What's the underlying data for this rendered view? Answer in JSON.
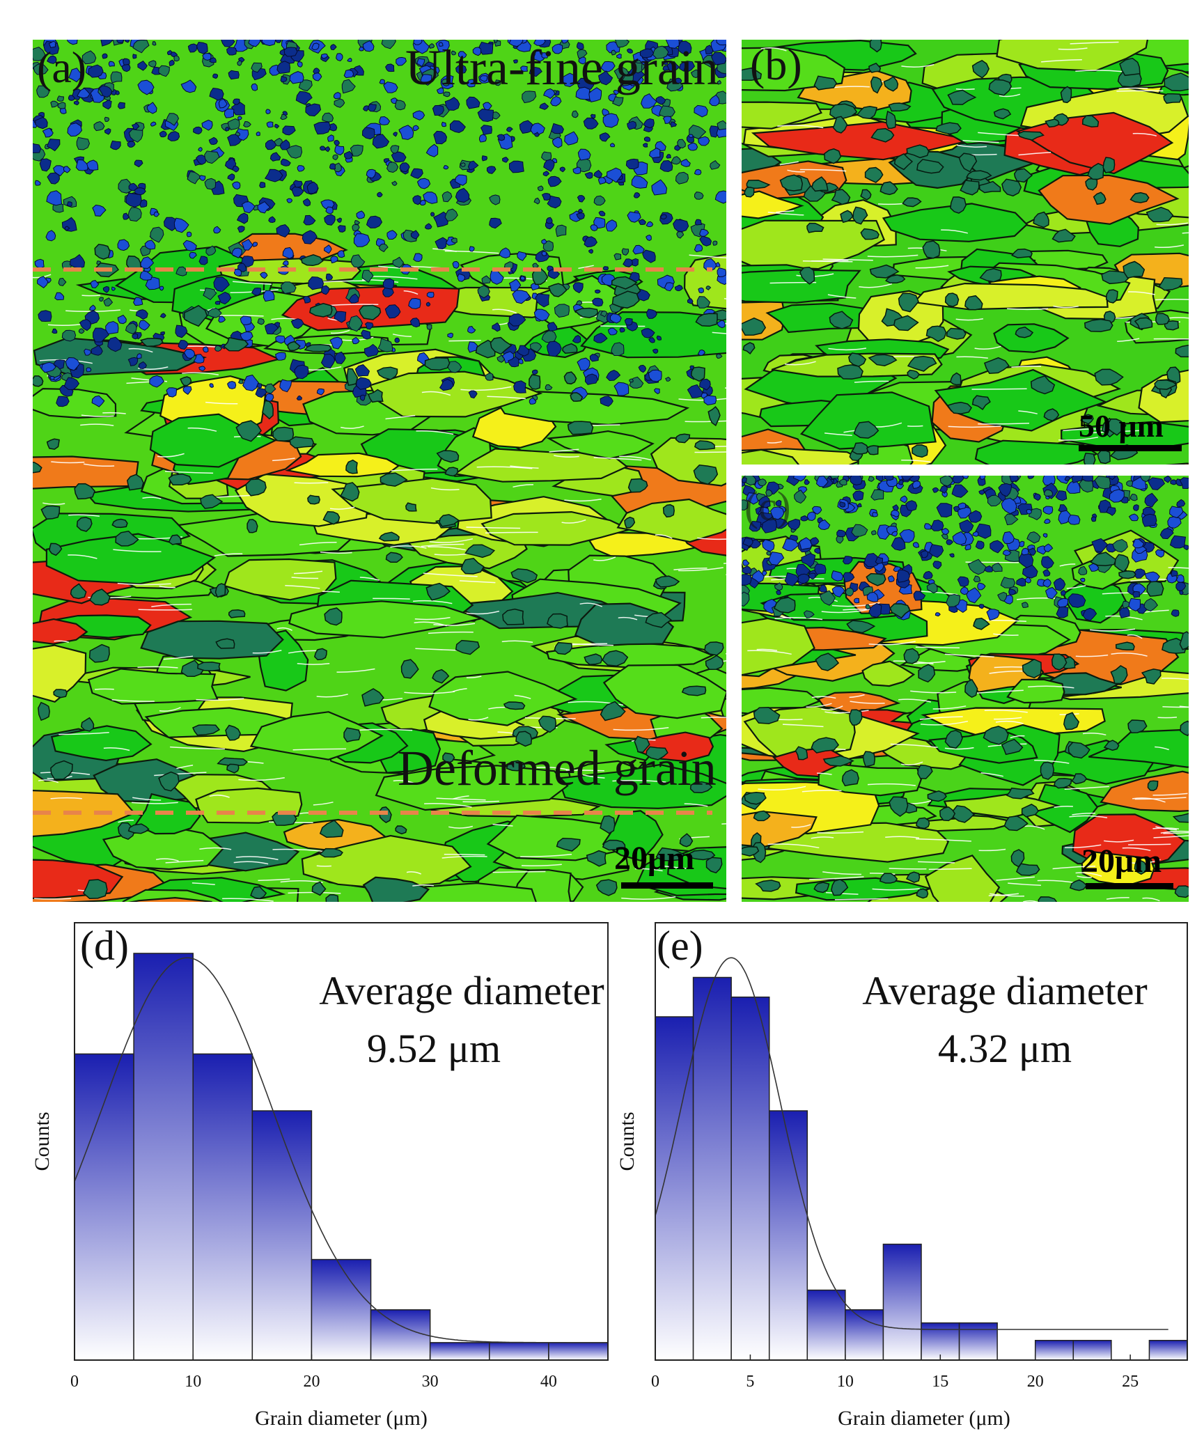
{
  "panels": {
    "a": {
      "label": "(a)",
      "top_annotation": "Ultra-fine grain",
      "bottom_annotation": "Deformed grain",
      "scale_label": "20μm"
    },
    "b": {
      "label": "(b)",
      "scale_label": "50 μm"
    },
    "c": {
      "label": "(c)",
      "scale_label": "20μm"
    }
  },
  "colors": {
    "bar_top": "#1a1fb0",
    "bar_bottom": "#ffffff",
    "dashed_line": "#e8844a",
    "grain_palette": [
      "#18c818",
      "#55dd1a",
      "#9fe61c",
      "#d8f02a",
      "#f5f01a",
      "#f4b11c",
      "#f07a1a",
      "#e82a18",
      "#1e7a55",
      "#0b2d8c",
      "#1b4fd6"
    ]
  },
  "chart_data": [
    {
      "type": "bar",
      "panel_label": "(d)",
      "annotation_line1": "Average diameter",
      "annotation_line2": "9.52 μm",
      "xlabel": "Grain diameter (μm)",
      "ylabel": "Counts",
      "xlim": [
        0,
        45
      ],
      "ylim": [
        0,
        100
      ],
      "x_ticks": [
        "0",
        "10",
        "20",
        "30",
        "40"
      ],
      "bins": [
        {
          "from": 0,
          "to": 5,
          "value": 70
        },
        {
          "from": 5,
          "to": 10,
          "value": 93
        },
        {
          "from": 10,
          "to": 15,
          "value": 70
        },
        {
          "from": 15,
          "to": 20,
          "value": 57
        },
        {
          "from": 20,
          "to": 25,
          "value": 23
        },
        {
          "from": 25,
          "to": 30,
          "value": 11.5
        },
        {
          "from": 30,
          "to": 35,
          "value": 4
        },
        {
          "from": 35,
          "to": 40,
          "value": 4
        },
        {
          "from": 40,
          "to": 45,
          "value": 4
        }
      ],
      "fit": {
        "type": "gaussian",
        "y0": 4,
        "amplitude": 88,
        "center": 9.5,
        "sigma": 7.2,
        "x_end": 45
      }
    },
    {
      "type": "bar",
      "panel_label": "(e)",
      "annotation_line1": "Average diameter",
      "annotation_line2": "4.32 μm",
      "xlabel": "Grain diameter (μm)",
      "ylabel": "Counts",
      "xlim": [
        0,
        28
      ],
      "ylim": [
        0,
        100
      ],
      "x_ticks": [
        "0",
        "5",
        "10",
        "15",
        "20",
        "25"
      ],
      "bins": [
        {
          "from": 0,
          "to": 2,
          "value": 78.5
        },
        {
          "from": 2,
          "to": 4,
          "value": 87.5
        },
        {
          "from": 4,
          "to": 6,
          "value": 83
        },
        {
          "from": 6,
          "to": 8,
          "value": 57
        },
        {
          "from": 8,
          "to": 10,
          "value": 16
        },
        {
          "from": 10,
          "to": 12,
          "value": 11.5
        },
        {
          "from": 12,
          "to": 14,
          "value": 26.5
        },
        {
          "from": 14,
          "to": 16,
          "value": 8.5
        },
        {
          "from": 16,
          "to": 18,
          "value": 8.5
        },
        {
          "from": 18,
          "to": 20,
          "value": 0
        },
        {
          "from": 20,
          "to": 22,
          "value": 4.5
        },
        {
          "from": 22,
          "to": 24,
          "value": 4.5
        },
        {
          "from": 24,
          "to": 26,
          "value": 0
        },
        {
          "from": 26,
          "to": 28,
          "value": 4.5
        }
      ],
      "fit": {
        "type": "gaussian",
        "y0": 7,
        "amplitude": 85,
        "center": 4,
        "sigma": 2.6,
        "x_end": 27
      }
    }
  ]
}
